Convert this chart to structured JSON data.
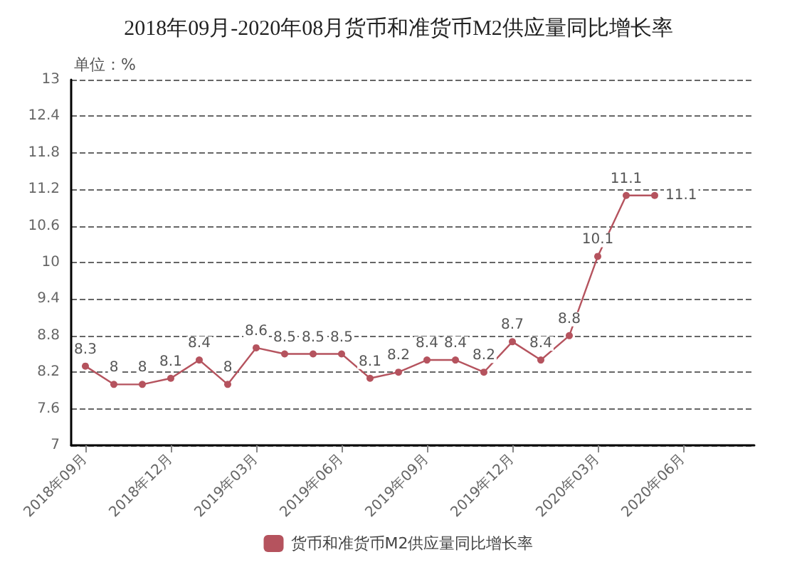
{
  "chart_data": {
    "type": "line",
    "title": "2018年09月-2020年08月货币和准货币M2供应量同比增长率",
    "ylabel": "单位：%",
    "categories": [
      "2018年09月",
      null,
      null,
      "2018年12月",
      null,
      null,
      "2019年03月",
      null,
      null,
      "2019年06月",
      null,
      null,
      "2019年09月",
      null,
      null,
      "2019年12月",
      null,
      null,
      "2020年03月",
      null,
      null,
      "2020年06月",
      null,
      null
    ],
    "series": [
      {
        "name": "货币和准货币M2供应量同比增长率",
        "color": "#b5535e",
        "values": [
          8.3,
          8.0,
          8.0,
          8.1,
          8.4,
          8.0,
          8.6,
          8.5,
          8.5,
          8.5,
          8.1,
          8.2,
          8.4,
          8.4,
          8.2,
          8.7,
          8.4,
          8.8,
          10.1,
          11.1,
          11.1,
          null,
          null,
          null
        ]
      }
    ],
    "ylim": [
      7,
      13
    ],
    "yticks": [
      7,
      7.6,
      8.2,
      8.8,
      9.4,
      10,
      10.6,
      11.2,
      11.8,
      12.4,
      13
    ],
    "grid": "y",
    "legend": "bottom",
    "marker": "circle",
    "line_style": "solid",
    "data_labels": true
  }
}
